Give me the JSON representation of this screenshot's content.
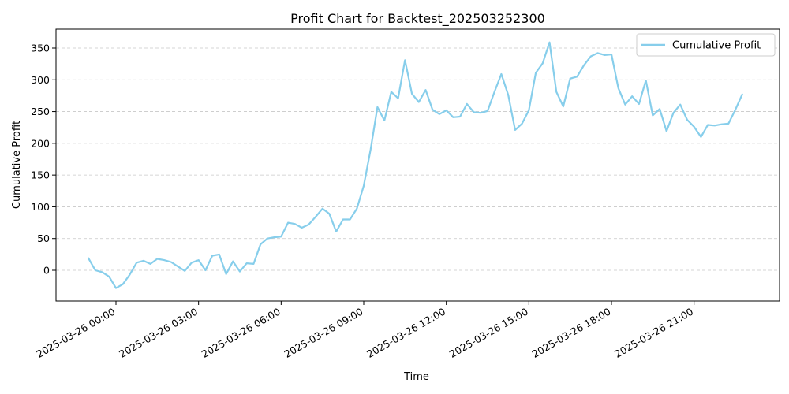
{
  "chart_data": {
    "type": "line",
    "title": "Profit Chart for Backtest_202503252300",
    "xlabel": "Time",
    "ylabel": "Cumulative Profit",
    "ylim": [
      -50,
      380
    ],
    "x_ticks": [
      "2025-03-26 00:00",
      "2025-03-26 03:00",
      "2025-03-26 06:00",
      "2025-03-26 09:00",
      "2025-03-26 12:00",
      "2025-03-26 15:00",
      "2025-03-26 18:00",
      "2025-03-26 21:00"
    ],
    "y_ticks": [
      0,
      50,
      100,
      150,
      200,
      250,
      300,
      350
    ],
    "grid": "horizontal dashed",
    "legend_position": "top-right",
    "series": [
      {
        "name": "Cumulative Profit",
        "color": "#87ceeb",
        "x": [
          "2025-03-25 23:00",
          "2025-03-25 23:15",
          "2025-03-25 23:30",
          "2025-03-25 23:45",
          "2025-03-26 00:00",
          "2025-03-26 00:15",
          "2025-03-26 00:30",
          "2025-03-26 00:45",
          "2025-03-26 01:00",
          "2025-03-26 01:15",
          "2025-03-26 01:30",
          "2025-03-26 01:45",
          "2025-03-26 02:00",
          "2025-03-26 02:15",
          "2025-03-26 02:30",
          "2025-03-26 02:45",
          "2025-03-26 03:00",
          "2025-03-26 03:15",
          "2025-03-26 03:30",
          "2025-03-26 03:45",
          "2025-03-26 04:00",
          "2025-03-26 04:15",
          "2025-03-26 04:30",
          "2025-03-26 04:45",
          "2025-03-26 05:00",
          "2025-03-26 05:15",
          "2025-03-26 05:30",
          "2025-03-26 05:45",
          "2025-03-26 06:00",
          "2025-03-26 06:15",
          "2025-03-26 06:30",
          "2025-03-26 06:45",
          "2025-03-26 07:00",
          "2025-03-26 07:15",
          "2025-03-26 07:30",
          "2025-03-26 07:45",
          "2025-03-26 08:00",
          "2025-03-26 08:15",
          "2025-03-26 08:30",
          "2025-03-26 08:45",
          "2025-03-26 09:00",
          "2025-03-26 09:15",
          "2025-03-26 09:30",
          "2025-03-26 09:45",
          "2025-03-26 10:00",
          "2025-03-26 10:15",
          "2025-03-26 10:30",
          "2025-03-26 10:45",
          "2025-03-26 11:00",
          "2025-03-26 11:15",
          "2025-03-26 11:30",
          "2025-03-26 11:45",
          "2025-03-26 12:00",
          "2025-03-26 12:15",
          "2025-03-26 12:30",
          "2025-03-26 12:45",
          "2025-03-26 13:00",
          "2025-03-26 13:15",
          "2025-03-26 13:30",
          "2025-03-26 13:45",
          "2025-03-26 14:00",
          "2025-03-26 14:15",
          "2025-03-26 14:30",
          "2025-03-26 14:45",
          "2025-03-26 15:00",
          "2025-03-26 15:15",
          "2025-03-26 15:30",
          "2025-03-26 15:45",
          "2025-03-26 16:00",
          "2025-03-26 16:15",
          "2025-03-26 16:30",
          "2025-03-26 16:45",
          "2025-03-26 17:00",
          "2025-03-26 17:15",
          "2025-03-26 17:30",
          "2025-03-26 17:45",
          "2025-03-26 18:00",
          "2025-03-26 18:15",
          "2025-03-26 18:30",
          "2025-03-26 18:45",
          "2025-03-26 19:00",
          "2025-03-26 19:15",
          "2025-03-26 19:30",
          "2025-03-26 19:45",
          "2025-03-26 20:00",
          "2025-03-26 20:15",
          "2025-03-26 20:30",
          "2025-03-26 20:45",
          "2025-03-26 21:00",
          "2025-03-26 21:15",
          "2025-03-26 21:30",
          "2025-03-26 21:45",
          "2025-03-26 22:00",
          "2025-03-26 22:15",
          "2025-03-26 22:30",
          "2025-03-26 22:45"
        ],
        "y": [
          19,
          0,
          -3,
          -10,
          -28,
          -22,
          -7,
          12,
          15,
          10,
          18,
          16,
          13,
          6,
          -1,
          12,
          16,
          0,
          23,
          25,
          -6,
          14,
          -2,
          11,
          10,
          41,
          50,
          52,
          53,
          75,
          73,
          67,
          72,
          84,
          97,
          89,
          61,
          80,
          80,
          97,
          133,
          190,
          257,
          236,
          281,
          271,
          331,
          278,
          265,
          284,
          253,
          246,
          252,
          241,
          242,
          262,
          249,
          248,
          251,
          281,
          309,
          276,
          221,
          231,
          252,
          311,
          326,
          359,
          281,
          258,
          302,
          305,
          323,
          337,
          342,
          339,
          340,
          287,
          261,
          274,
          262,
          299,
          244,
          254,
          219,
          248,
          261,
          237,
          226,
          210,
          229,
          228,
          230,
          231,
          253,
          277
        ]
      }
    ]
  }
}
